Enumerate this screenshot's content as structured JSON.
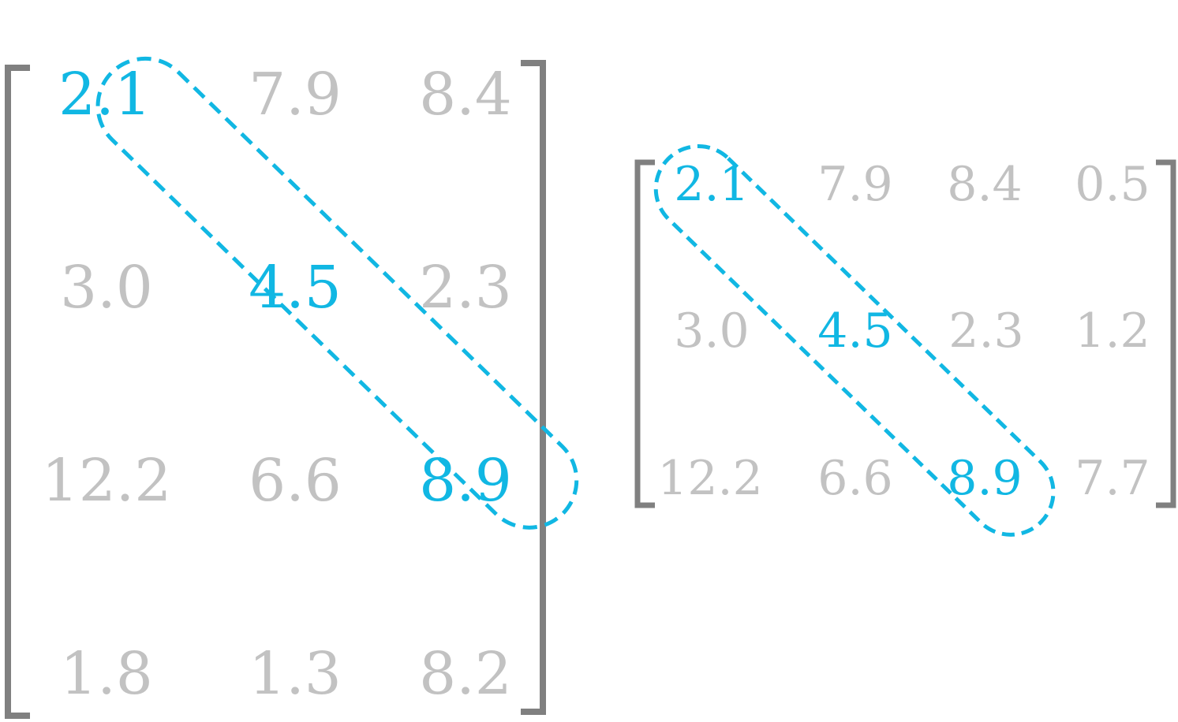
{
  "colors": {
    "bracket": "#808080",
    "muted": "#c2c2c2",
    "highlight": "#11b7e3",
    "background": "#ffffff"
  },
  "matrices": [
    {
      "id": "matrix-4x3",
      "rows": [
        [
          "2.1",
          "7.9",
          "8.4"
        ],
        [
          "3.0",
          "4.5",
          "2.3"
        ],
        [
          "12.2",
          "6.6",
          "8.9"
        ],
        [
          "1.8",
          "1.3",
          "8.2"
        ]
      ],
      "diagonal": [
        "2.1",
        "4.5",
        "8.9"
      ]
    },
    {
      "id": "matrix-3x4",
      "rows": [
        [
          "2.1",
          "7.9",
          "8.4",
          "0.5"
        ],
        [
          "3.0",
          "4.5",
          "2.3",
          "1.2"
        ],
        [
          "12.2",
          "6.6",
          "8.9",
          "7.7"
        ]
      ],
      "diagonal": [
        "2.1",
        "4.5",
        "8.9"
      ]
    }
  ]
}
